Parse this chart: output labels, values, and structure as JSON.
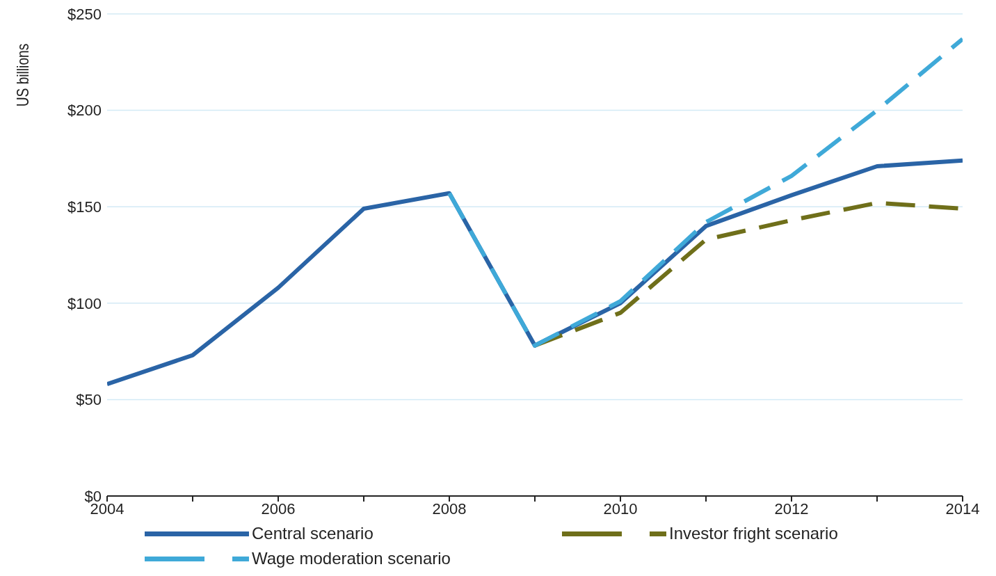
{
  "chart_data": {
    "type": "line",
    "ylabel": "US billions",
    "x": [
      2004,
      2005,
      2006,
      2007,
      2008,
      2009,
      2010,
      2011,
      2012,
      2013,
      2014
    ],
    "xlim": [
      2004,
      2014
    ],
    "xticks": [
      2004,
      {
        "value": 2005,
        "label": null
      },
      2006,
      {
        "value": 2007,
        "label": null
      },
      2008,
      {
        "value": 2009,
        "label": null
      },
      2010,
      {
        "value": 2011,
        "label": null
      },
      2012,
      {
        "value": 2013,
        "label": null
      },
      2014
    ],
    "ylim": [
      0,
      250
    ],
    "yticks": [
      {
        "value": 0,
        "label": "$0"
      },
      {
        "value": 50,
        "label": "$50"
      },
      {
        "value": 100,
        "label": "$100"
      },
      {
        "value": 150,
        "label": "$150"
      },
      {
        "value": 200,
        "label": "$200"
      },
      {
        "value": 250,
        "label": "$250"
      }
    ],
    "grid": "y",
    "legend": "bottom",
    "marker": "none",
    "series": [
      {
        "name": "Central scenario",
        "color": "#2a64a6",
        "line_style": "solid",
        "values": [
          58,
          73,
          108,
          149,
          157,
          78,
          100,
          140,
          156,
          171,
          174
        ]
      },
      {
        "name": "Investor fright scenario",
        "color": "#6f6f1a",
        "line_style": "dashed",
        "values": [
          null,
          null,
          null,
          null,
          null,
          78,
          95,
          133,
          143,
          152,
          149
        ]
      },
      {
        "name": "Wage moderation scenario",
        "color": "#3fa9d8",
        "line_style": "dashed",
        "values": [
          null,
          null,
          null,
          null,
          157,
          78,
          101,
          142,
          166,
          200,
          237
        ]
      }
    ]
  }
}
